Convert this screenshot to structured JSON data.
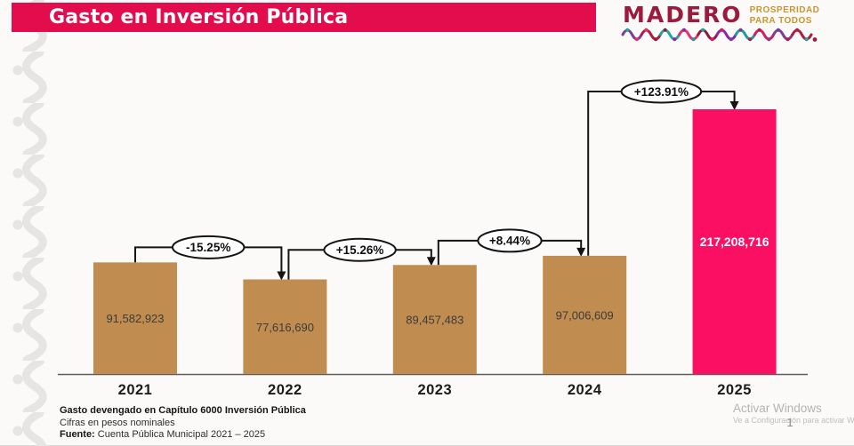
{
  "title_bar": {
    "title": "Gasto en Inversión Pública"
  },
  "logo": {
    "name": "MADERO",
    "tagline_line1": "PROSPERIDAD",
    "tagline_line2": "PARA TODOS",
    "wave_colors": [
      "#7C3D99",
      "#B01E3F",
      "#20A69A",
      "#E0346E",
      "#8E1B3B",
      "#8E24AA",
      "#1E9E96",
      "#D81B60",
      "#7C3D99",
      "#B01E3F"
    ]
  },
  "chart_data": {
    "type": "bar",
    "title": "Gasto en Inversión Pública",
    "categories": [
      "2021",
      "2022",
      "2023",
      "2024",
      "2025"
    ],
    "values": [
      91582923,
      77616690,
      89457483,
      97006609,
      217208716
    ],
    "value_labels": [
      "91,582,923",
      "77,616,690",
      "89,457,483",
      "97,006,609",
      "217,208,716"
    ],
    "pct_changes": [
      "-15.25%",
      "+15.26%",
      "+8.44%",
      "+123.91%"
    ],
    "bar_colors": [
      "#C08C50",
      "#C08C50",
      "#C08C50",
      "#C08C50",
      "#FB0F63"
    ],
    "highlight_category": "2025",
    "xlabel": "",
    "ylabel": "",
    "y_axis_visible": false,
    "grid": false,
    "legend": false,
    "ylim": [
      0,
      230000000
    ]
  },
  "footer": {
    "line1": "Gasto devengado en Capítulo 6000 Inversión Pública",
    "line2": "Cifras en pesos nominales",
    "line3_bold": "Fuente:",
    "line3_rest": " Cuenta Pública Municipal 2021 – 2025"
  },
  "watermark": {
    "line1": "Activar Windows",
    "line2": "Ve a Configuración para activar Wind",
    "page_number": "1"
  },
  "colors": {
    "title_bar": "#E30D4E",
    "bar_tan": "#C08C50",
    "bar_pink": "#FB0F63",
    "logo_maroon": "#9C1B3C",
    "logo_gold": "#C9962E",
    "arrow_black": "#141414",
    "pattern_gray": "#E6E5E4"
  }
}
